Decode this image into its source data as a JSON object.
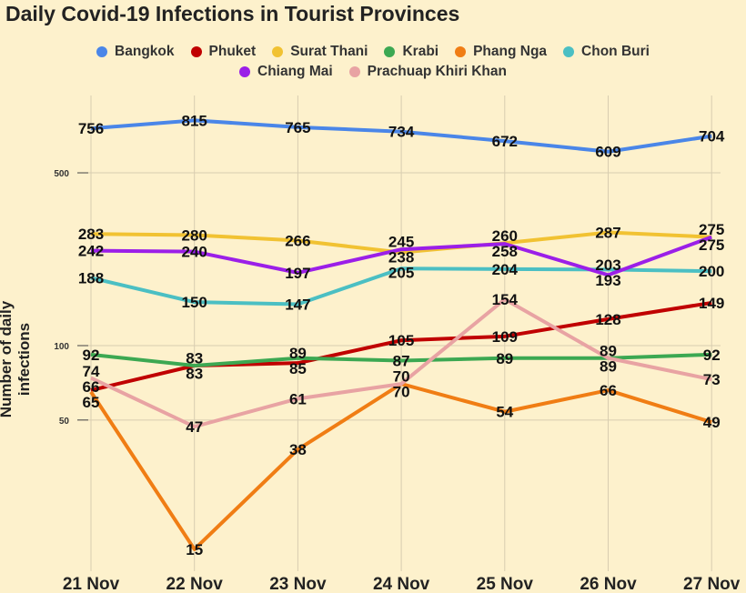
{
  "chart_data": {
    "type": "line",
    "title": "Daily Covid-19 Infections in Tourist Provinces",
    "xlabel": "",
    "ylabel": "Number of daily infections",
    "y_scale": "log",
    "yticks": [
      50,
      100,
      500
    ],
    "ylim": [
      12,
      900
    ],
    "grid": true,
    "legend_position": "top",
    "categories": [
      "21 Nov",
      "22 Nov",
      "23 Nov",
      "24 Nov",
      "25 Nov",
      "26 Nov",
      "27 Nov"
    ],
    "series": [
      {
        "name": "Bangkok",
        "color": "#4a86e8",
        "values": [
          756,
          815,
          765,
          734,
          672,
          609,
          704
        ]
      },
      {
        "name": "Phuket",
        "color": "#c00000",
        "values": [
          66,
          83,
          85,
          105,
          109,
          128,
          149
        ]
      },
      {
        "name": "Surat Thani",
        "color": "#f1c232",
        "values": [
          283,
          280,
          266,
          238,
          260,
          287,
          275
        ]
      },
      {
        "name": "Krabi",
        "color": "#3ca852",
        "values": [
          92,
          83,
          89,
          87,
          89,
          89,
          92
        ]
      },
      {
        "name": "Phang Nga",
        "color": "#f07d14",
        "values": [
          65,
          15,
          38,
          70,
          54,
          66,
          49
        ]
      },
      {
        "name": "Chon Buri",
        "color": "#4bbfc3",
        "values": [
          188,
          150,
          147,
          205,
          204,
          203,
          200
        ]
      },
      {
        "name": "Chiang Mai",
        "color": "#9b1fe8",
        "values": [
          242,
          240,
          197,
          245,
          258,
          193,
          275
        ]
      },
      {
        "name": "Prachuap Khiri Khan",
        "color": "#e8a3a3",
        "values": [
          74,
          47,
          61,
          70,
          154,
          89,
          73
        ]
      }
    ]
  }
}
